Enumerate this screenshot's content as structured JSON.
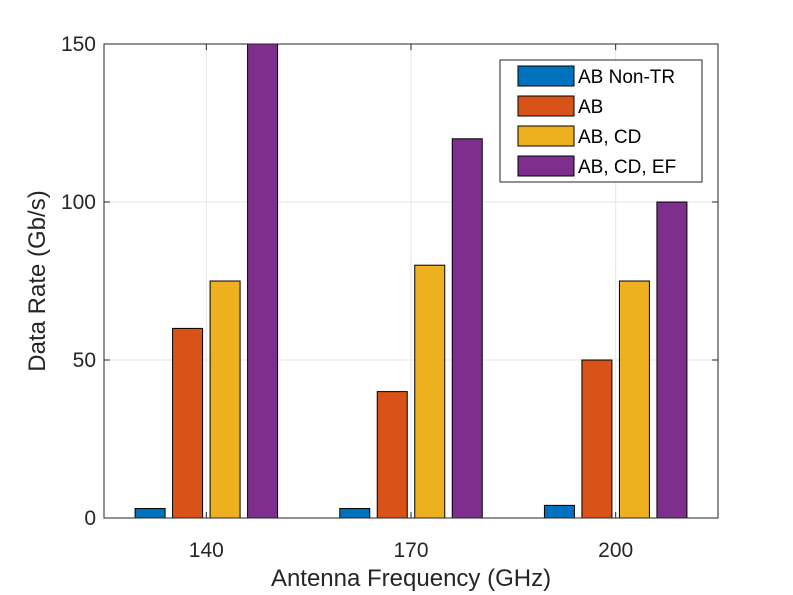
{
  "chart_data": {
    "type": "bar",
    "title": "",
    "xlabel": "Antenna Frequency (GHz)",
    "ylabel": "Data Rate (Gb/s)",
    "categories": [
      "140",
      "170",
      "200"
    ],
    "ylim": [
      0,
      150
    ],
    "yticks": [
      "0",
      "50",
      "100",
      "150"
    ],
    "grid": true,
    "legend_position": "top-right",
    "series": [
      {
        "name": "AB Non-TR",
        "color": "#0072BD",
        "values": [
          3,
          3,
          4
        ]
      },
      {
        "name": "AB",
        "color": "#D95319",
        "values": [
          60,
          40,
          50
        ]
      },
      {
        "name": "AB, CD",
        "color": "#EDB120",
        "values": [
          75,
          80,
          75
        ]
      },
      {
        "name": "AB, CD, EF",
        "color": "#7E2F8E",
        "values": [
          150,
          120,
          100
        ]
      }
    ]
  }
}
